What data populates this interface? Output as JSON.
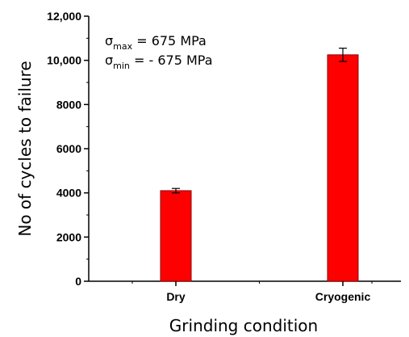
{
  "chart_data": {
    "type": "bar",
    "title": "",
    "xlabel": "Grinding condition",
    "ylabel": "No of cycles to failure",
    "categories": [
      "Dry",
      "Cryogenic"
    ],
    "series": [
      {
        "values": [
          4100,
          10250
        ],
        "errors": [
          100,
          300
        ],
        "color": "#ff0000",
        "edge_color": "#8b0000"
      }
    ],
    "ylim": [
      0,
      12000
    ],
    "yticks": [
      {
        "value": 0,
        "label": "0"
      },
      {
        "value": 2000,
        "label": "2000"
      },
      {
        "value": 4000,
        "label": "4000"
      },
      {
        "value": 6000,
        "label": "6000"
      },
      {
        "value": 8000,
        "label": "8000"
      },
      {
        "value": 10000,
        "label": "10,000"
      },
      {
        "value": 12000,
        "label": "12,000"
      }
    ],
    "annotations": [
      {
        "symbol": "σ",
        "subscript": "max",
        "text": " = 675 MPa"
      },
      {
        "symbol": "σ",
        "subscript": "min",
        "text": "  = - 675 MPa"
      }
    ],
    "grid": false,
    "legend": "none"
  }
}
